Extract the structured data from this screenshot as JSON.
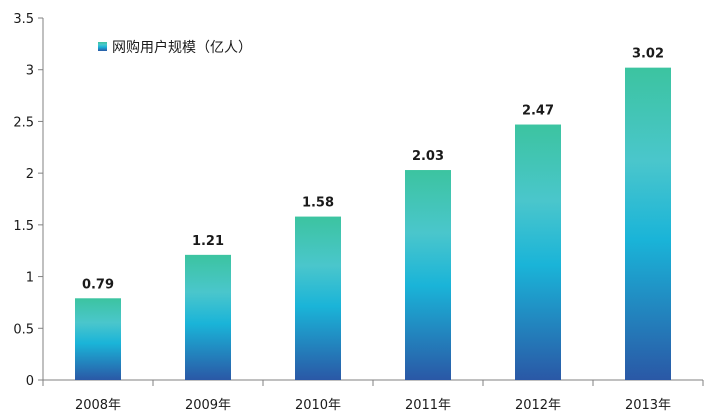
{
  "chart_data": {
    "type": "bar",
    "categories": [
      "2008年",
      "2009年",
      "2010年",
      "2011年",
      "2012年",
      "2013年"
    ],
    "series": [
      {
        "name": "网购用户规模（亿人）",
        "values": [
          0.79,
          1.21,
          1.58,
          2.03,
          2.47,
          3.02
        ]
      }
    ],
    "data_labels": [
      "0.79",
      "1.21",
      "1.58",
      "2.03",
      "2.47",
      "3.02"
    ],
    "y_ticks": [
      "0",
      "0.5",
      "1",
      "1.5",
      "2",
      "2.5",
      "3",
      "3.5"
    ],
    "ylim": [
      0,
      3.5
    ],
    "grid": false,
    "legend_position": "top-left",
    "colors": {
      "bar_top": "#3cc4a0",
      "bar_mid": "#1ab4d8",
      "bar_bottom": "#2a5aa8",
      "axis": "#808080"
    }
  }
}
